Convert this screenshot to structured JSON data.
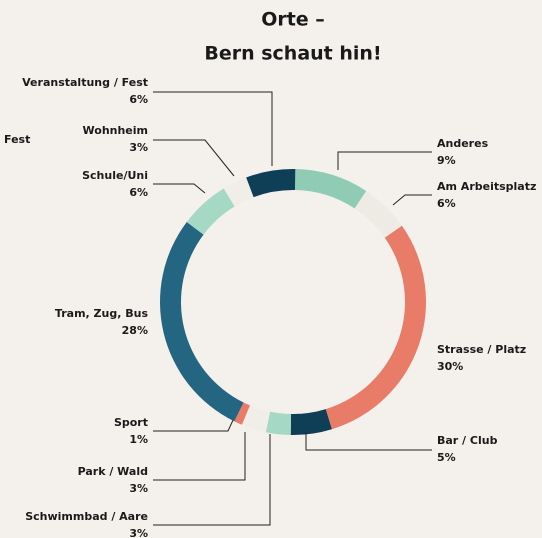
{
  "chart_data": {
    "type": "donut",
    "title": "Orte –",
    "subtitle": "Bern schaut hin!",
    "annotation": "Fest",
    "categories": [
      "Anderes",
      "Am Arbeitsplatz",
      "Strasse / Platz",
      "Bar / Club",
      "Schwimmbad / Aare",
      "Park / Wald",
      "Sport",
      "Tram, Zug, Bus",
      "Schule/Uni",
      "Wohnheim",
      "Veranstaltung / Fest"
    ],
    "values": [
      9,
      6,
      30,
      5,
      3,
      3,
      1,
      28,
      6,
      3,
      6
    ],
    "value_labels": [
      "9%",
      "6%",
      "30%",
      "5%",
      "3%",
      "3%",
      "1%",
      "28%",
      "6%",
      "3%",
      "6%"
    ],
    "colors": [
      "#8fcbb5",
      "#eeebe5",
      "#e97b69",
      "#0f3e57",
      "#a6d9c5",
      "#f1eee9",
      "#e97b69",
      "#246582",
      "#a6d9c5",
      "#f1eee9",
      "#0f3e57"
    ]
  }
}
